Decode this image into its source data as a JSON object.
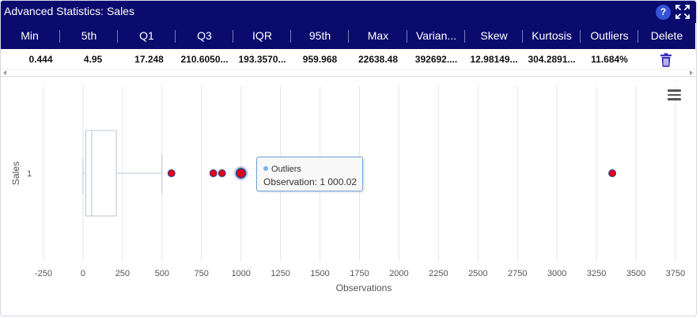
{
  "panel": {
    "title": "Advanced Statistics: Sales",
    "help_label": "?",
    "help_icon": "question-circle-icon",
    "expand_icon": "expand-icon"
  },
  "stats": {
    "columns": [
      {
        "header": "Min",
        "value": "0.444"
      },
      {
        "header": "5th",
        "value": "4.95"
      },
      {
        "header": "Q1",
        "value": "17.248"
      },
      {
        "header": "Q3",
        "value": "210.6050..."
      },
      {
        "header": "IQR",
        "value": "193.3570..."
      },
      {
        "header": "95th",
        "value": "959.968"
      },
      {
        "header": "Max",
        "value": "22638.48"
      },
      {
        "header": "Varian...",
        "value": "392692...."
      },
      {
        "header": "Skew",
        "value": "12.98149..."
      },
      {
        "header": "Kurtosis",
        "value": "304.2891..."
      },
      {
        "header": "Outliers",
        "value": "11.684%"
      }
    ],
    "delete_header": "Delete",
    "delete_icon": "trash-icon",
    "colors": {
      "header_bg": "#0b0b6e",
      "trash": "#3a2fb8"
    }
  },
  "chart_data": {
    "type": "boxplot",
    "orientation": "horizontal",
    "title": "",
    "xlabel": "Observations",
    "ylabel": "Sales",
    "categories": [
      "1"
    ],
    "xlim": [
      -250,
      3750
    ],
    "x_ticks": [
      -250,
      0,
      250,
      500,
      750,
      1000,
      1250,
      1500,
      1750,
      2000,
      2250,
      2500,
      2750,
      3000,
      3250,
      3500,
      3750
    ],
    "grid": true,
    "box": {
      "low": 0,
      "q1": 17.248,
      "median": 55,
      "q3": 210.605,
      "high": 500
    },
    "outliers": [
      560,
      825,
      880,
      1000.02,
      3350
    ],
    "highlighted_outlier": 1000.02,
    "colors": {
      "outlier": "#e0001a",
      "outlier_border": "#1f4a9e",
      "box": "#b8c7d3",
      "grid": "#e6e6e6"
    },
    "tooltip": {
      "series": "Outliers",
      "text": "Observation: 1 000.02"
    },
    "menu_icon": "hamburger-menu-icon"
  }
}
